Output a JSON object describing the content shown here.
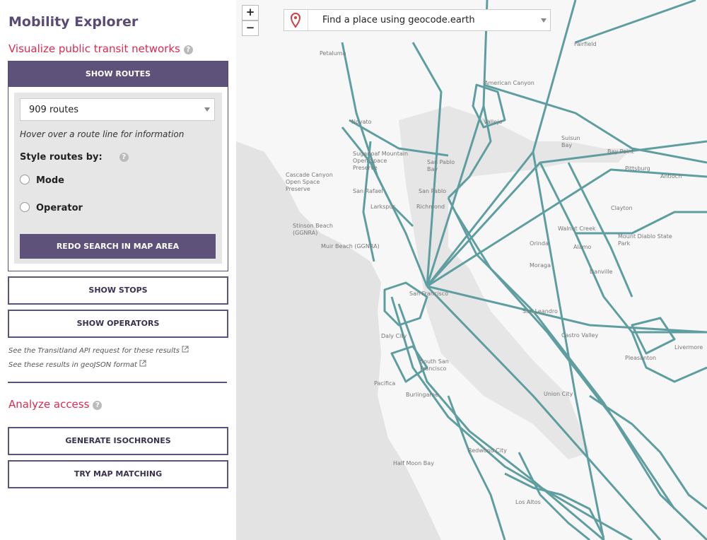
{
  "sidebar": {
    "title": "Mobility Explorer",
    "visualize": {
      "heading": "Visualize public transit networks",
      "show_routes": "SHOW ROUTES",
      "route_select": "909 routes",
      "hint": "Hover over a route line for information",
      "style_label": "Style routes by:",
      "options": [
        "Mode",
        "Operator"
      ],
      "redo": "REDO SEARCH IN MAP AREA",
      "show_stops": "SHOW STOPS",
      "show_operators": "SHOW OPERATORS",
      "links": [
        "See the Transitland API request for these results",
        "See these results in geoJSON format"
      ]
    },
    "analyze": {
      "heading": "Analyze access",
      "buttons": [
        "GENERATE ISOCHRONES",
        "TRY MAP MATCHING"
      ]
    }
  },
  "map": {
    "zoom_in": "+",
    "zoom_out": "−",
    "search_placeholder": "Find a place using geocode.earth",
    "labels": [
      [
        "Petaluma"
      ],
      [
        "American Canyon"
      ],
      [
        "Fairfield"
      ],
      [
        "Novato"
      ],
      [
        "Vallejo"
      ],
      [
        "Suisun",
        "Bay"
      ],
      [
        "Bay Point"
      ],
      [
        "Pittsburg"
      ],
      [
        "Antioch"
      ],
      [
        "San Pablo",
        "Bay"
      ],
      [
        "Cascade Canyon",
        "Open Space",
        "Preserve"
      ],
      [
        "San Rafael"
      ],
      [
        "San Pablo"
      ],
      [
        "Larkspur"
      ],
      [
        "Richmond"
      ],
      [
        "Clayton"
      ],
      [
        "Walnut Creek"
      ],
      [
        "Mount Diablo State",
        "Park"
      ],
      [
        "Stinson Beach",
        "(GGNRA)"
      ],
      [
        "Orinda"
      ],
      [
        "Alamo"
      ],
      [
        "Muir Beach (GGNRA)"
      ],
      [
        "Moraga"
      ],
      [
        "Danville"
      ],
      [
        "San Francisco"
      ],
      [
        "San Leandro"
      ],
      [
        "Castro Valley"
      ],
      [
        "Daly City"
      ],
      [
        "South San",
        "Francisco"
      ],
      [
        "Pleasanton"
      ],
      [
        "Livermore"
      ],
      [
        "Pacifica"
      ],
      [
        "Burlingame"
      ],
      [
        "Union City"
      ],
      [
        "Half Moon Bay"
      ],
      [
        "Redwood City"
      ],
      [
        "Los Altos"
      ],
      [
        "Sugarloaf Mountain",
        "Open Space",
        "Preserve"
      ]
    ]
  }
}
